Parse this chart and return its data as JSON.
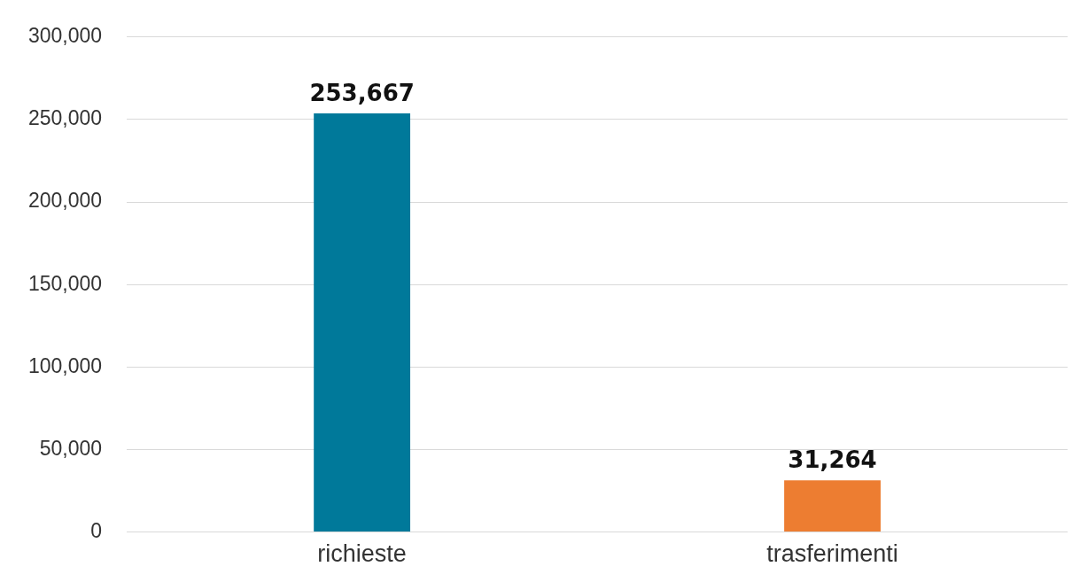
{
  "chart_data": {
    "type": "bar",
    "categories": [
      "richieste",
      "trasferimenti"
    ],
    "values": [
      253667,
      31264
    ],
    "value_labels": [
      "253,667",
      "31,264"
    ],
    "colors": [
      "#00799a",
      "#ed7d31"
    ],
    "ylim": [
      0,
      300000
    ],
    "yticks": [
      0,
      {
        "value": 50000,
        "label": "50,000"
      },
      {
        "value": 100000,
        "label": "100,000"
      },
      {
        "value": 150000,
        "label": "150,000"
      },
      {
        "value": 200000,
        "label": "200,000"
      },
      {
        "value": 250000,
        "label": "250,000"
      },
      {
        "value": 300000,
        "label": "300,000"
      }
    ],
    "grid": "y",
    "legend": false
  }
}
